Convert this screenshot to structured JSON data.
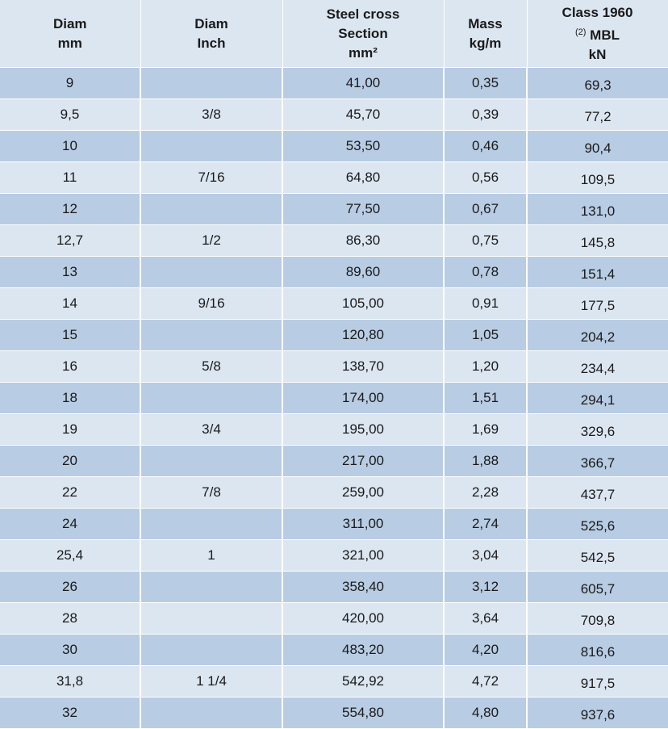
{
  "header": {
    "col1": {
      "line1": "Diam",
      "line2": "mm"
    },
    "col2": {
      "line1": "Diam",
      "line2": "Inch"
    },
    "col3": {
      "line1": "Steel cross",
      "line2": "Section",
      "line3": "mm²"
    },
    "col4": {
      "line1": "Mass",
      "line2": "kg/m"
    },
    "col5": {
      "line1": "Class 1960",
      "sup": "(2)",
      "line2": " MBL",
      "line3": "kN"
    }
  },
  "rows": [
    [
      "9",
      "",
      "41,00",
      "0,35",
      "69,3"
    ],
    [
      "9,5",
      "3/8",
      "45,70",
      "0,39",
      "77,2"
    ],
    [
      "10",
      "",
      "53,50",
      "0,46",
      "90,4"
    ],
    [
      "11",
      "7/16",
      "64,80",
      "0,56",
      "109,5"
    ],
    [
      "12",
      "",
      "77,50",
      "0,67",
      "131,0"
    ],
    [
      "12,7",
      "1/2",
      "86,30",
      "0,75",
      "145,8"
    ],
    [
      "13",
      "",
      "89,60",
      "0,78",
      "151,4"
    ],
    [
      "14",
      "9/16",
      "105,00",
      "0,91",
      "177,5"
    ],
    [
      "15",
      "",
      "120,80",
      "1,05",
      "204,2"
    ],
    [
      "16",
      "5/8",
      "138,70",
      "1,20",
      "234,4"
    ],
    [
      "18",
      "",
      "174,00",
      "1,51",
      "294,1"
    ],
    [
      "19",
      "3/4",
      "195,00",
      "1,69",
      "329,6"
    ],
    [
      "20",
      "",
      "217,00",
      "1,88",
      "366,7"
    ],
    [
      "22",
      "7/8",
      "259,00",
      "2,28",
      "437,7"
    ],
    [
      "24",
      "",
      "311,00",
      "2,74",
      "525,6"
    ],
    [
      "25,4",
      "1",
      "321,00",
      "3,04",
      "542,5"
    ],
    [
      "26",
      "",
      "358,40",
      "3,12",
      "605,7"
    ],
    [
      "28",
      "",
      "420,00",
      "3,64",
      "709,8"
    ],
    [
      "30",
      "",
      "483,20",
      "4,20",
      "816,6"
    ],
    [
      "31,8",
      "1 1/4",
      "542,92",
      "4,72",
      "917,5"
    ],
    [
      "32",
      "",
      "554,80",
      "4,80",
      "937,6"
    ]
  ],
  "colors": {
    "row_dark": "#b8cce4",
    "row_light": "#dce6f1",
    "header_bg": "#dce6f1"
  }
}
